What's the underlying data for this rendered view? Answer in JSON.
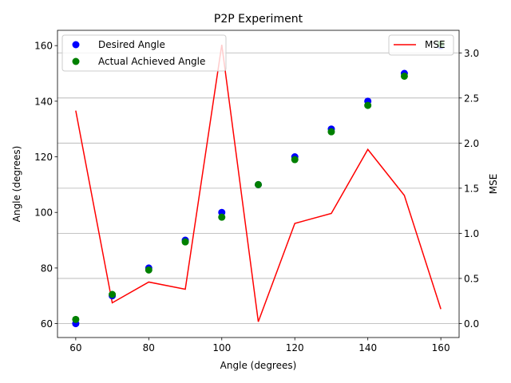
{
  "chart_data": {
    "type": "scatter",
    "title": "P2P Experiment",
    "xlabel": "Angle (degrees)",
    "ylabel": "Angle (degrees)",
    "ylabel_right": "MSE",
    "xlim": [
      55,
      165
    ],
    "ylim": [
      55.0,
      165.5
    ],
    "ylim_right": [
      -0.155,
      3.25
    ],
    "x_ticks": [
      60,
      80,
      100,
      120,
      140,
      160
    ],
    "y_ticks": [
      60,
      80,
      100,
      120,
      140,
      160
    ],
    "y_right_ticks": [
      0.0,
      0.5,
      1.0,
      1.5,
      2.0,
      2.5,
      3.0
    ],
    "grid": "horizontal-right-axis",
    "x": [
      60,
      70,
      80,
      90,
      100,
      110,
      120,
      130,
      140,
      150,
      160
    ],
    "series": [
      {
        "name": "Desired Angle",
        "kind": "scatter",
        "color": "#0000ff",
        "values": [
          60,
          70,
          80,
          90,
          100,
          110,
          120,
          130,
          140,
          150,
          160
        ]
      },
      {
        "name": "Actual Achieved Angle",
        "kind": "scatter",
        "color": "#008000",
        "values": [
          61.5,
          70.5,
          79.3,
          89.4,
          98.3,
          110.0,
          119.0,
          129.0,
          138.5,
          149.0,
          160.5
        ]
      },
      {
        "name": "MSE",
        "kind": "line",
        "axis": "right",
        "color": "#ff0000",
        "values": [
          2.36,
          0.23,
          0.46,
          0.38,
          3.09,
          0.02,
          1.11,
          1.22,
          1.93,
          1.42,
          0.16
        ]
      }
    ],
    "legend_left": "upper-left",
    "legend_right": "upper-right"
  }
}
